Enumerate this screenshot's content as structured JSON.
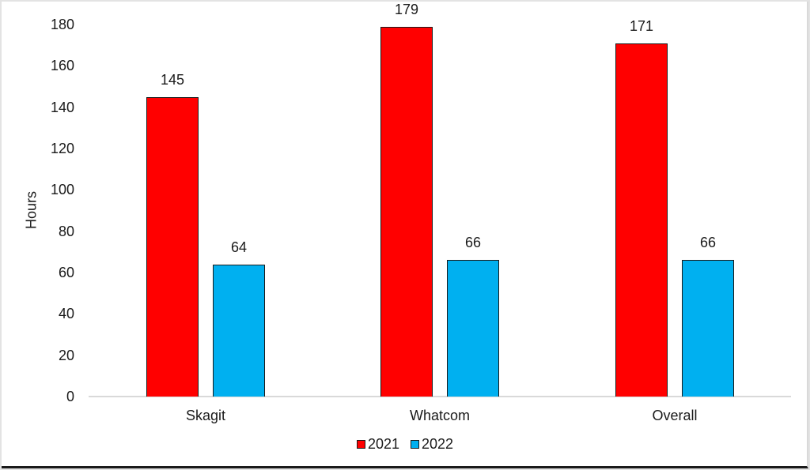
{
  "chart_data": {
    "type": "bar",
    "title": "",
    "xlabel": "",
    "ylabel": "Hours",
    "ylim": [
      0,
      180
    ],
    "yticks": [
      0,
      20,
      40,
      60,
      80,
      100,
      120,
      140,
      160,
      180
    ],
    "grid": false,
    "legend_position": "bottom",
    "categories": [
      "Skagit",
      "Whatcom",
      "Overall"
    ],
    "series": [
      {
        "name": "2021",
        "color": "#ff0000",
        "values": [
          145,
          179,
          171
        ]
      },
      {
        "name": "2022",
        "color": "#00b0f0",
        "values": [
          64,
          66,
          66
        ]
      }
    ],
    "data_labels": [
      [
        "145",
        "179",
        "171"
      ],
      [
        "64",
        "66",
        "66"
      ]
    ]
  },
  "axis": {
    "ylabel": "Hours",
    "yticks": [
      "0",
      "20",
      "40",
      "60",
      "80",
      "100",
      "120",
      "140",
      "160",
      "180"
    ]
  },
  "categories": [
    "Skagit",
    "Whatcom",
    "Overall"
  ],
  "legend": [
    {
      "label": "2021",
      "color": "#ff0000"
    },
    {
      "label": "2022",
      "color": "#00b0f0"
    }
  ]
}
